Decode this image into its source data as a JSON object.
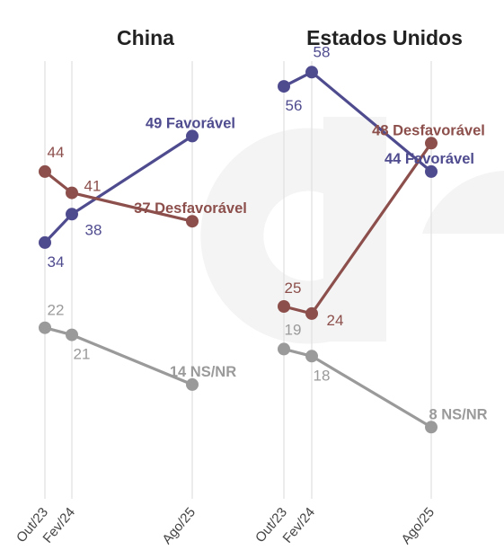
{
  "colors": {
    "favoravel": "#4f4b8f",
    "desfavoravel": "#8c4f4b",
    "nsnr": "#9a9a9a",
    "grid": "#e3e3e3",
    "watermark": "#f4f4f4"
  },
  "watermark_icon": "ge-invest-logo-watermark",
  "chart_data": [
    {
      "type": "line",
      "title": "China",
      "categories": [
        "Out/23",
        "Fev/24",
        "Ago/25"
      ],
      "series": [
        {
          "key": "fav",
          "name": "Favorável",
          "end_label": "49 Favorável",
          "values": [
            34,
            38,
            49
          ]
        },
        {
          "key": "desf",
          "name": "Desfavorável",
          "end_label": "37 Desfavorável",
          "values": [
            44,
            41,
            37
          ]
        },
        {
          "key": "ns",
          "name": "NS/NR",
          "end_label": "14 NS/NR",
          "values": [
            22,
            21,
            14
          ]
        }
      ]
    },
    {
      "type": "line",
      "title": "Estados Unidos",
      "categories": [
        "Out/23",
        "Fev/24",
        "Ago/25"
      ],
      "series": [
        {
          "key": "fav",
          "name": "Favorável",
          "end_label": "44 Favorável",
          "values": [
            56,
            58,
            44
          ]
        },
        {
          "key": "desf",
          "name": "Desfavorável",
          "end_label": "48 Desfavorável",
          "values": [
            25,
            24,
            48
          ]
        },
        {
          "key": "ns",
          "name": "NS/NR",
          "end_label": "8 NS/NR",
          "values": [
            19,
            18,
            8
          ]
        }
      ]
    }
  ]
}
